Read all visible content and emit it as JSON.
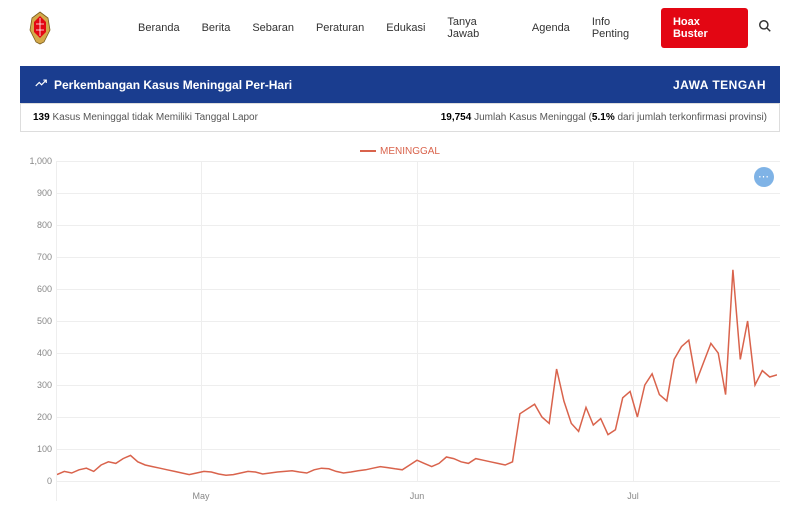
{
  "nav": {
    "items": [
      "Beranda",
      "Berita",
      "Sebaran",
      "Peraturan",
      "Edukasi",
      "Tanya Jawab",
      "Agenda",
      "Info Penting"
    ],
    "hoax_label": "Hoax Buster"
  },
  "header": {
    "title": "Perkembangan Kasus Meninggal Per-Hari",
    "region": "JAWA TENGAH"
  },
  "info": {
    "left_count": "139",
    "left_text": "Kasus Meninggal tidak Memiliki Tanggal Lapor",
    "right_count": "19,754",
    "right_text_a": "Jumlah Kasus Meninggal (",
    "right_pct": "5.1%",
    "right_text_b": " dari jumlah terkonfirmasi provinsi)"
  },
  "chart": {
    "type": "line",
    "legend_label": "MENINGGAL",
    "series_color": "#d9634c",
    "grid_color": "#eeeeee",
    "axis_text_color": "#888888",
    "background_color": "#ffffff",
    "line_width": 1.5,
    "ylim": [
      0,
      1000
    ],
    "ytick_step": 100,
    "x_labels": [
      {
        "label": "May",
        "pos_pct": 20
      },
      {
        "label": "Jun",
        "pos_pct": 50
      },
      {
        "label": "Jul",
        "pos_pct": 80
      }
    ],
    "values": [
      20,
      30,
      25,
      35,
      40,
      30,
      50,
      60,
      55,
      70,
      80,
      60,
      50,
      45,
      40,
      35,
      30,
      25,
      20,
      25,
      30,
      28,
      22,
      18,
      20,
      25,
      30,
      28,
      22,
      25,
      28,
      30,
      32,
      28,
      25,
      35,
      40,
      38,
      30,
      25,
      28,
      32,
      35,
      40,
      45,
      42,
      38,
      35,
      50,
      65,
      55,
      45,
      55,
      75,
      70,
      60,
      55,
      70,
      65,
      60,
      55,
      50,
      60,
      210,
      225,
      240,
      200,
      180,
      350,
      250,
      180,
      155,
      230,
      175,
      195,
      145,
      160,
      260,
      280,
      200,
      300,
      335,
      270,
      250,
      380,
      420,
      440,
      310,
      370,
      430,
      400,
      270,
      660,
      380,
      500,
      300,
      345,
      325,
      332
    ]
  }
}
